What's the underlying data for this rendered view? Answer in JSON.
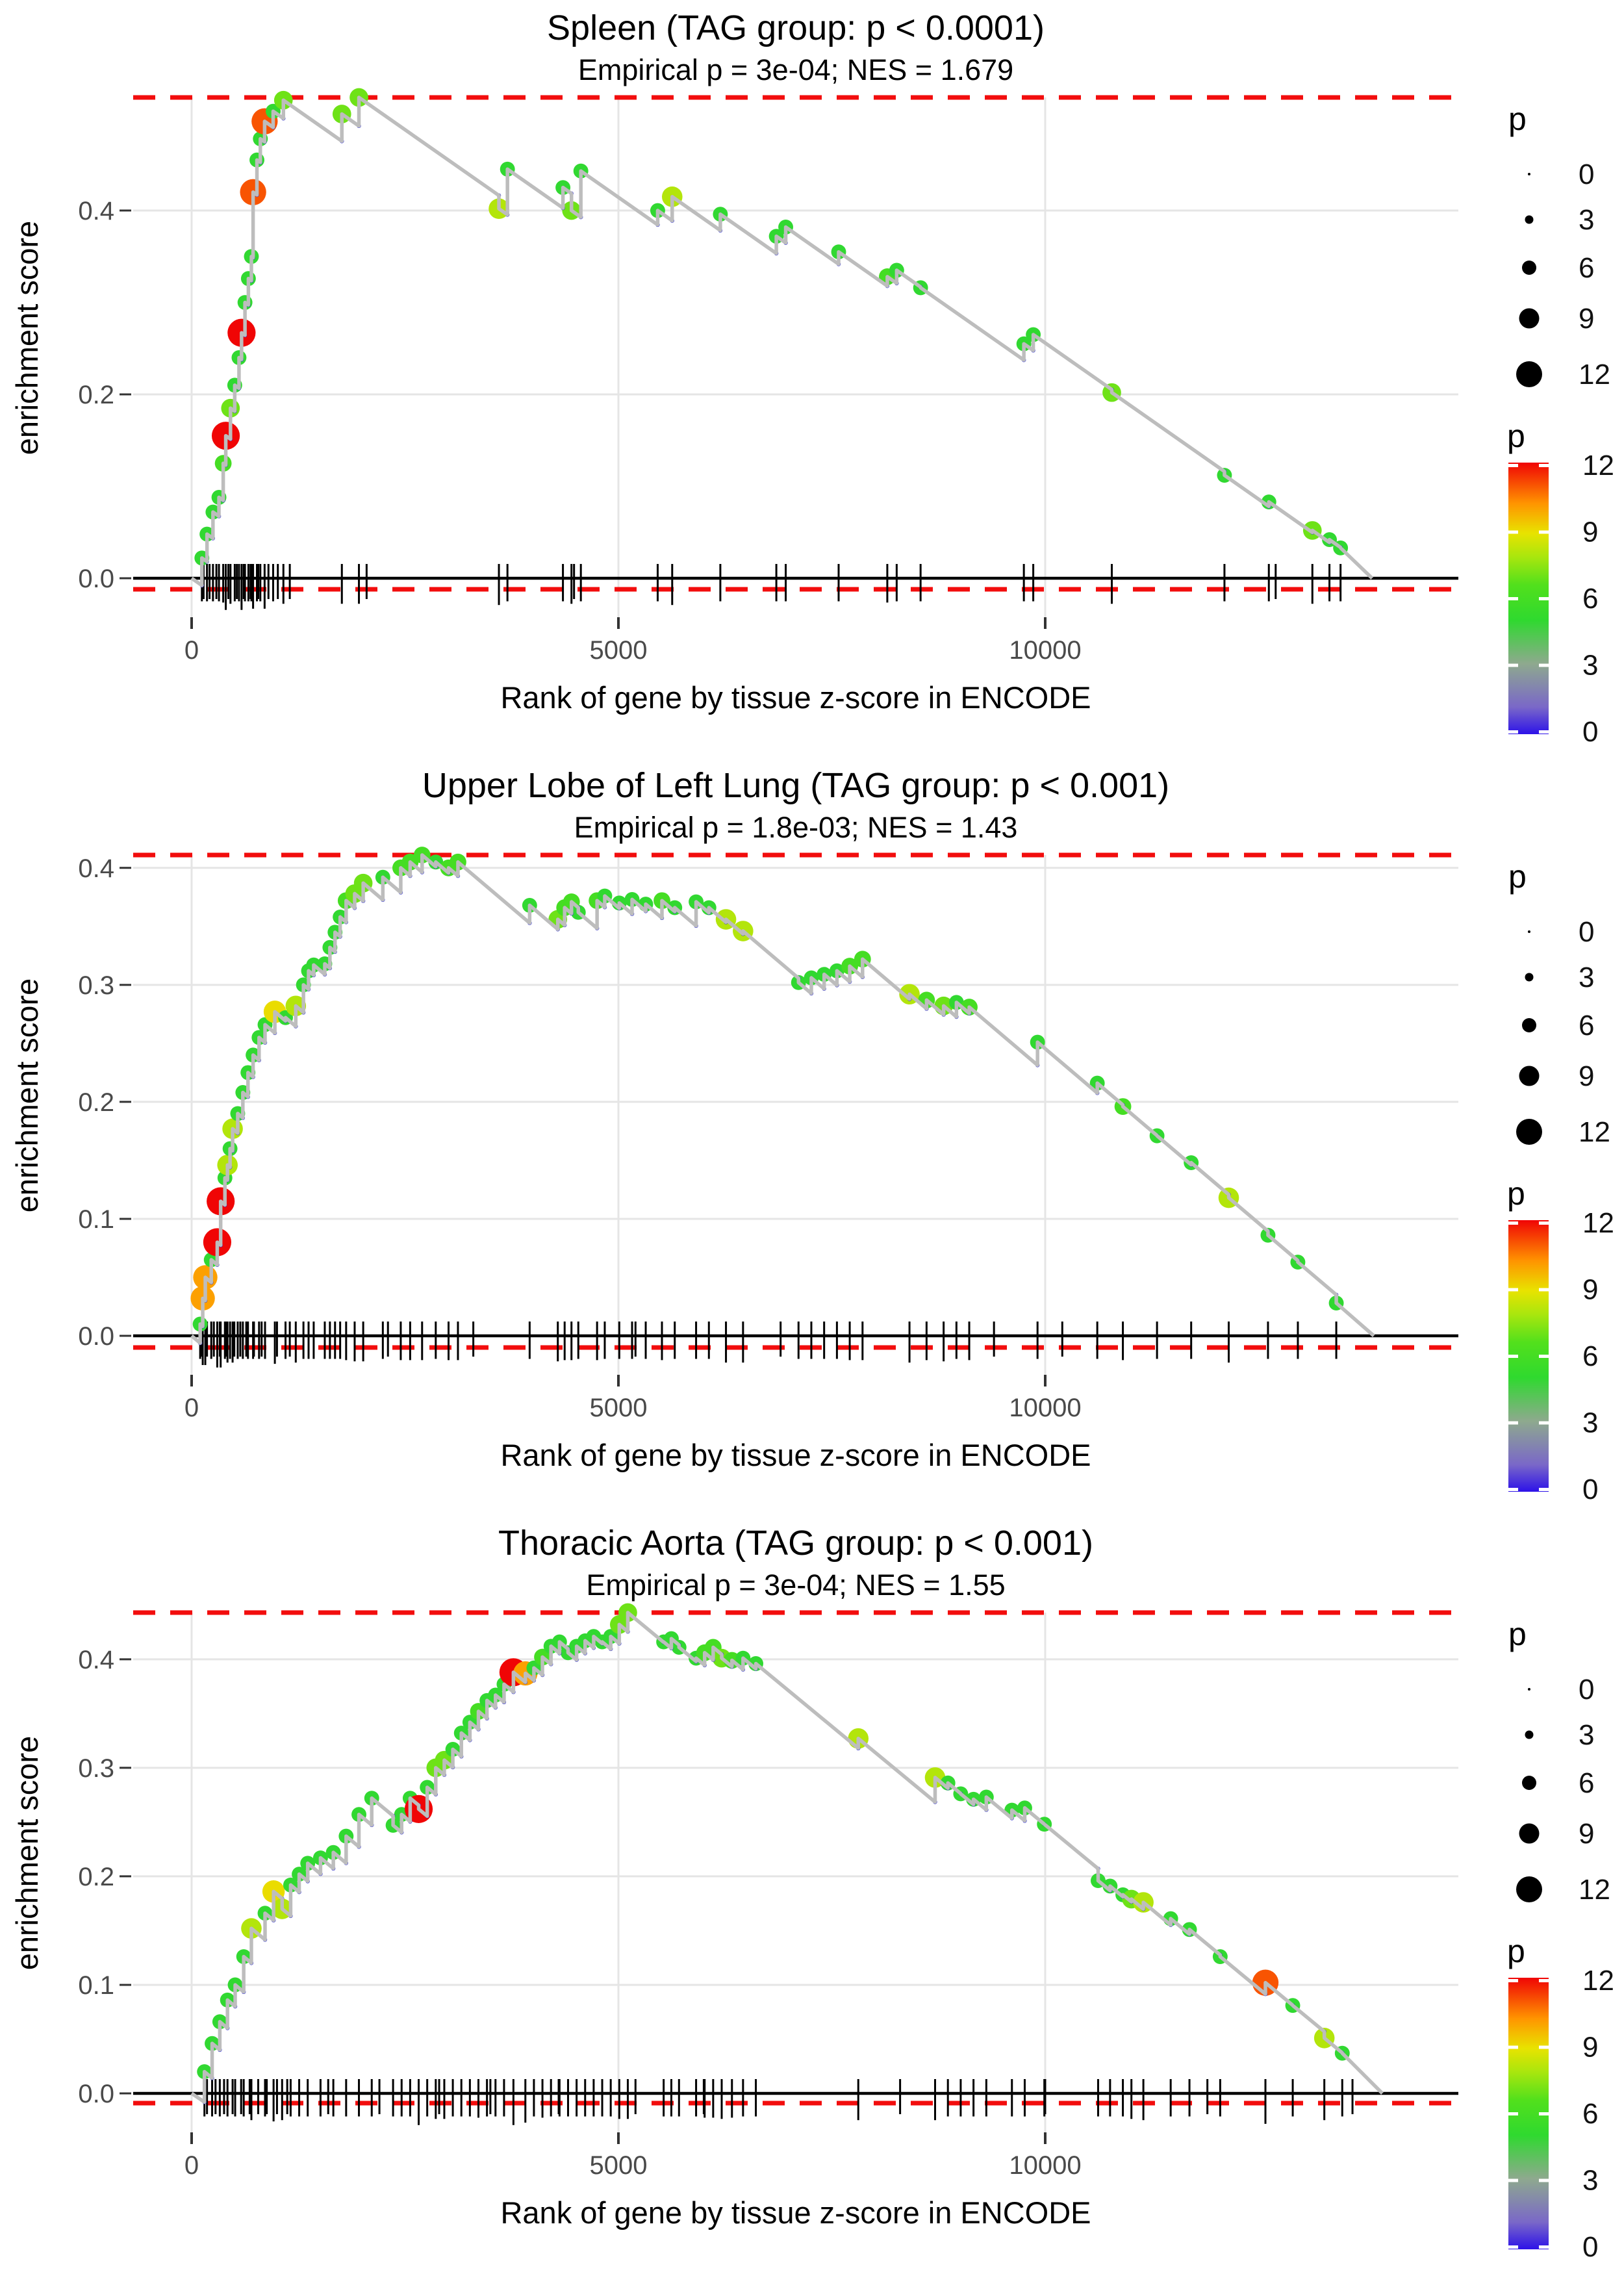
{
  "shared": {
    "xlabel": "Rank of gene by tissue z-score in ENCODE",
    "ylabel": "enrichment score",
    "x_ticks": [
      [
        0,
        "0"
      ],
      [
        5000,
        "5000"
      ],
      [
        10000,
        "10000"
      ]
    ],
    "colors": {
      "grid": "#e5e5e5",
      "dashed_line": "#f20d0d",
      "axis_line": "#000000",
      "curve": "#bdbdbd",
      "bottom_dot": "#2b2bd9",
      "tick_text": "#4a4a4a",
      "rug": "#000000"
    },
    "color_stops": [
      [
        0.0,
        "#2d12e8"
      ],
      [
        0.1,
        "#7a68c8"
      ],
      [
        0.26,
        "#8ea98e"
      ],
      [
        0.42,
        "#2fd92f"
      ],
      [
        0.55,
        "#52e01c"
      ],
      [
        0.65,
        "#a7e60e"
      ],
      [
        0.74,
        "#e8e300"
      ],
      [
        0.85,
        "#ff9400"
      ],
      [
        1.0,
        "#f00505"
      ]
    ]
  },
  "legend": {
    "size_title": "p",
    "size_values": [
      "0",
      "3",
      "6",
      "9",
      "12"
    ],
    "color_title": "p",
    "color_ticks": [
      "12",
      "9",
      "6",
      "3",
      "0"
    ]
  },
  "chart_data": [
    {
      "type": "line",
      "title": "Spleen (TAG group: p < 0.0001)",
      "subtitle": "Empirical p = 3e-04; NES = 1.679",
      "es_max": 0.523,
      "es_min": -0.012,
      "yticks": [
        [
          0,
          "0.0"
        ],
        [
          0.2,
          "0.2"
        ],
        [
          0.4,
          "0.4"
        ]
      ],
      "decline": 6.5e-05,
      "end_x": 13830,
      "hits": [
        [
          120,
          0.022,
          5
        ],
        [
          180,
          0.048,
          5
        ],
        [
          250,
          0.072,
          5
        ],
        [
          320,
          0.088,
          5
        ],
        [
          370,
          0.125,
          6
        ],
        [
          400,
          0.155,
          12
        ],
        [
          455,
          0.185,
          7
        ],
        [
          505,
          0.21,
          5
        ],
        [
          555,
          0.24,
          5
        ],
        [
          585,
          0.267,
          12
        ],
        [
          625,
          0.3,
          5
        ],
        [
          665,
          0.326,
          5
        ],
        [
          700,
          0.35,
          5
        ],
        [
          720,
          0.42,
          11
        ],
        [
          765,
          0.455,
          5
        ],
        [
          805,
          0.478,
          5
        ],
        [
          855,
          0.497,
          11
        ],
        [
          955,
          0.508,
          5
        ],
        [
          1075,
          0.52,
          7
        ],
        [
          1760,
          0.505,
          7
        ],
        [
          1960,
          0.523,
          7
        ],
        [
          3600,
          0.402,
          8
        ],
        [
          3700,
          0.445,
          5
        ],
        [
          4350,
          0.425,
          5
        ],
        [
          4450,
          0.4,
          7
        ],
        [
          4560,
          0.443,
          5
        ],
        [
          5460,
          0.4,
          5
        ],
        [
          5630,
          0.415,
          8
        ],
        [
          6194,
          0.396,
          5
        ],
        [
          6850,
          0.372,
          5
        ],
        [
          6960,
          0.382,
          5
        ],
        [
          7580,
          0.355,
          5
        ],
        [
          8150,
          0.328,
          6
        ],
        [
          8260,
          0.335,
          5
        ],
        [
          8540,
          0.316,
          5
        ],
        [
          9750,
          0.255,
          5
        ],
        [
          9860,
          0.265,
          5
        ],
        [
          10780,
          0.202,
          7
        ],
        [
          12100,
          0.112,
          5
        ],
        [
          12620,
          0.083,
          5
        ],
        [
          13130,
          0.052,
          7
        ],
        [
          13330,
          0.042,
          5
        ],
        [
          13460,
          0.033,
          5
        ]
      ],
      "rug_extra": [
        140,
        210,
        290,
        430,
        530,
        610,
        690,
        780,
        900,
        1010,
        1150,
        2050,
        4480,
        12700
      ]
    },
    {
      "type": "line",
      "title": "Upper Lobe of Left Lung (TAG group: p < 0.001)",
      "subtitle": "Empirical p = 1.8e-03; NES = 1.43",
      "es_max": 0.411,
      "es_min": -0.01,
      "yticks": [
        [
          0,
          "0.0"
        ],
        [
          0.1,
          "0.1"
        ],
        [
          0.2,
          "0.2"
        ],
        [
          0.3,
          "0.3"
        ],
        [
          0.4,
          "0.4"
        ]
      ],
      "decline": 6.2e-05,
      "end_x": 13850,
      "hits": [
        [
          100,
          0.01,
          5
        ],
        [
          130,
          0.032,
          10
        ],
        [
          160,
          0.05,
          10
        ],
        [
          230,
          0.065,
          5
        ],
        [
          300,
          0.08,
          12
        ],
        [
          340,
          0.115,
          12
        ],
        [
          390,
          0.135,
          5
        ],
        [
          420,
          0.146,
          8
        ],
        [
          450,
          0.16,
          5
        ],
        [
          480,
          0.177,
          8
        ],
        [
          540,
          0.19,
          5
        ],
        [
          600,
          0.208,
          5
        ],
        [
          660,
          0.225,
          5
        ],
        [
          720,
          0.24,
          5
        ],
        [
          790,
          0.255,
          5
        ],
        [
          860,
          0.266,
          5
        ],
        [
          975,
          0.277,
          9
        ],
        [
          1100,
          0.272,
          5
        ],
        [
          1220,
          0.282,
          8
        ],
        [
          1310,
          0.3,
          5
        ],
        [
          1370,
          0.312,
          5
        ],
        [
          1430,
          0.317,
          5
        ],
        [
          1560,
          0.318,
          5
        ],
        [
          1620,
          0.332,
          5
        ],
        [
          1680,
          0.345,
          5
        ],
        [
          1740,
          0.358,
          5
        ],
        [
          1810,
          0.372,
          6
        ],
        [
          1910,
          0.378,
          7
        ],
        [
          2010,
          0.387,
          7
        ],
        [
          2240,
          0.392,
          5
        ],
        [
          2450,
          0.4,
          6
        ],
        [
          2560,
          0.405,
          6
        ],
        [
          2700,
          0.411,
          6
        ],
        [
          2860,
          0.405,
          5
        ],
        [
          3010,
          0.4,
          6
        ],
        [
          3120,
          0.405,
          6
        ],
        [
          3960,
          0.368,
          5
        ],
        [
          4290,
          0.356,
          7
        ],
        [
          4370,
          0.366,
          6
        ],
        [
          4450,
          0.371,
          6
        ],
        [
          4530,
          0.362,
          5
        ],
        [
          4750,
          0.372,
          6
        ],
        [
          4840,
          0.376,
          5
        ],
        [
          5010,
          0.37,
          5
        ],
        [
          5160,
          0.373,
          5
        ],
        [
          5320,
          0.369,
          5
        ],
        [
          5510,
          0.372,
          6
        ],
        [
          5660,
          0.366,
          5
        ],
        [
          5910,
          0.371,
          5
        ],
        [
          6060,
          0.366,
          5
        ],
        [
          6260,
          0.356,
          8
        ],
        [
          6460,
          0.346,
          8
        ],
        [
          7110,
          0.302,
          5
        ],
        [
          7260,
          0.306,
          5
        ],
        [
          7410,
          0.309,
          5
        ],
        [
          7560,
          0.312,
          5
        ],
        [
          7710,
          0.316,
          6
        ],
        [
          7860,
          0.322,
          6
        ],
        [
          8410,
          0.292,
          8
        ],
        [
          8610,
          0.287,
          6
        ],
        [
          8810,
          0.282,
          7
        ],
        [
          8960,
          0.285,
          5
        ],
        [
          9110,
          0.281,
          6
        ],
        [
          9910,
          0.251,
          5
        ],
        [
          10610,
          0.216,
          5
        ],
        [
          10910,
          0.196,
          6
        ],
        [
          11310,
          0.171,
          5
        ],
        [
          11710,
          0.148,
          5
        ],
        [
          12150,
          0.118,
          8
        ],
        [
          12610,
          0.086,
          5
        ],
        [
          12960,
          0.063,
          5
        ],
        [
          13410,
          0.028,
          5
        ]
      ],
      "rug_extra": [
        110,
        180,
        260,
        330,
        410,
        500,
        570,
        640,
        730,
        820,
        1000,
        1150,
        2300,
        3300,
        5200,
        6900,
        9400,
        10200
      ]
    },
    {
      "type": "line",
      "title": "Thoracic Aorta (TAG group: p < 0.001)",
      "subtitle": "Empirical p = 3e-04; NES = 1.55",
      "es_max": 0.443,
      "es_min": -0.009,
      "yticks": [
        [
          0,
          "0.0"
        ],
        [
          0.1,
          "0.1"
        ],
        [
          0.2,
          "0.2"
        ],
        [
          0.3,
          "0.3"
        ],
        [
          0.4,
          "0.4"
        ]
      ],
      "decline": 6.5e-05,
      "end_x": 13950,
      "hits": [
        [
          150,
          0.02,
          5
        ],
        [
          240,
          0.046,
          5
        ],
        [
          330,
          0.066,
          5
        ],
        [
          420,
          0.086,
          5
        ],
        [
          510,
          0.1,
          5
        ],
        [
          610,
          0.126,
          5
        ],
        [
          700,
          0.152,
          8
        ],
        [
          860,
          0.166,
          5
        ],
        [
          960,
          0.186,
          9
        ],
        [
          1060,
          0.17,
          8
        ],
        [
          1160,
          0.192,
          5
        ],
        [
          1260,
          0.202,
          5
        ],
        [
          1360,
          0.212,
          5
        ],
        [
          1510,
          0.217,
          5
        ],
        [
          1660,
          0.222,
          5
        ],
        [
          1810,
          0.237,
          5
        ],
        [
          1960,
          0.257,
          5
        ],
        [
          2110,
          0.272,
          5
        ],
        [
          2360,
          0.247,
          5
        ],
        [
          2460,
          0.257,
          5
        ],
        [
          2560,
          0.272,
          5
        ],
        [
          2660,
          0.262,
          12
        ],
        [
          2760,
          0.282,
          5
        ],
        [
          2860,
          0.3,
          7
        ],
        [
          2960,
          0.307,
          7
        ],
        [
          3060,
          0.317,
          5
        ],
        [
          3160,
          0.332,
          5
        ],
        [
          3260,
          0.342,
          5
        ],
        [
          3360,
          0.352,
          6
        ],
        [
          3460,
          0.362,
          5
        ],
        [
          3560,
          0.367,
          5
        ],
        [
          3660,
          0.377,
          5
        ],
        [
          3770,
          0.388,
          12
        ],
        [
          3910,
          0.387,
          10
        ],
        [
          4010,
          0.392,
          5
        ],
        [
          4110,
          0.402,
          6
        ],
        [
          4210,
          0.412,
          5
        ],
        [
          4310,
          0.416,
          5
        ],
        [
          4410,
          0.406,
          5
        ],
        [
          4510,
          0.412,
          5
        ],
        [
          4610,
          0.417,
          5
        ],
        [
          4710,
          0.421,
          5
        ],
        [
          4810,
          0.416,
          5
        ],
        [
          4910,
          0.421,
          5
        ],
        [
          5010,
          0.432,
          7
        ],
        [
          5110,
          0.443,
          7
        ],
        [
          5530,
          0.416,
          5
        ],
        [
          5620,
          0.419,
          5
        ],
        [
          5710,
          0.411,
          5
        ],
        [
          5910,
          0.401,
          5
        ],
        [
          6010,
          0.406,
          6
        ],
        [
          6110,
          0.411,
          6
        ],
        [
          6210,
          0.401,
          7
        ],
        [
          6330,
          0.399,
          6
        ],
        [
          6460,
          0.401,
          5
        ],
        [
          6610,
          0.396,
          5
        ],
        [
          7810,
          0.327,
          8
        ],
        [
          8710,
          0.291,
          8
        ],
        [
          8860,
          0.286,
          5
        ],
        [
          9010,
          0.276,
          5
        ],
        [
          9160,
          0.271,
          5
        ],
        [
          9310,
          0.273,
          5
        ],
        [
          9610,
          0.261,
          5
        ],
        [
          9760,
          0.263,
          5
        ],
        [
          9990,
          0.248,
          5
        ],
        [
          10620,
          0.196,
          5
        ],
        [
          10760,
          0.191,
          5
        ],
        [
          10910,
          0.183,
          5
        ],
        [
          11010,
          0.179,
          7
        ],
        [
          11150,
          0.176,
          8
        ],
        [
          11470,
          0.161,
          5
        ],
        [
          11690,
          0.151,
          5
        ],
        [
          12050,
          0.126,
          5
        ],
        [
          12580,
          0.102,
          11
        ],
        [
          12900,
          0.081,
          5
        ],
        [
          13270,
          0.051,
          8
        ],
        [
          13480,
          0.037,
          5
        ]
      ],
      "rug_extra": [
        180,
        280,
        380,
        480,
        580,
        680,
        780,
        880,
        1000,
        1120,
        1600,
        2200,
        2900,
        3500,
        4300,
        5200,
        6000,
        8300,
        10000,
        11900,
        13600
      ]
    }
  ]
}
